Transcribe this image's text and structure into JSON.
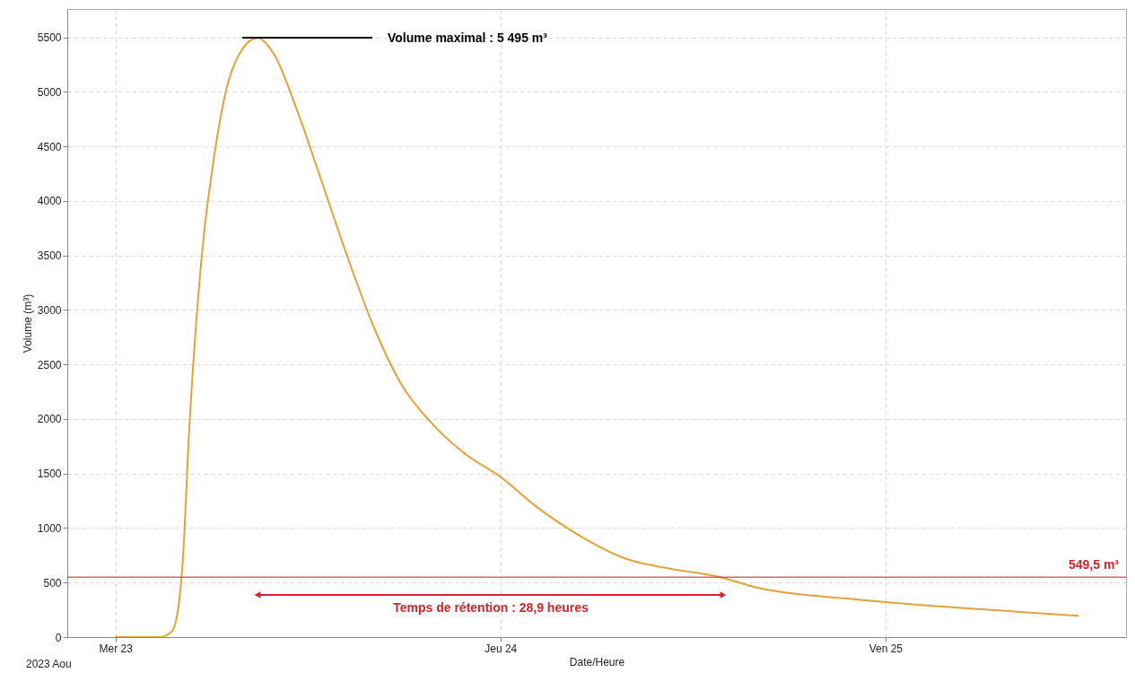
{
  "chart_data": {
    "type": "line",
    "xlabel": "Date/Heure",
    "ylabel": "Volume (m³)",
    "x": [
      "2023-08-23T00:00",
      "2023-08-23T02:00",
      "2023-08-23T02:45",
      "2023-08-23T03:30",
      "2023-08-23T03:54",
      "2023-08-23T04:12",
      "2023-08-23T04:36",
      "2023-08-23T05:09",
      "2023-08-23T05:36",
      "2023-08-23T06:00",
      "2023-08-23T06:48",
      "2023-08-23T07:54",
      "2023-08-23T08:52",
      "2023-08-23T09:52",
      "2023-08-23T11:15",
      "2023-08-23T12:54",
      "2023-08-23T14:36",
      "2023-08-23T16:12",
      "2023-08-23T17:54",
      "2023-08-23T19:36",
      "2023-08-23T21:48",
      "2023-08-24T00:00",
      "2023-08-24T02:12",
      "2023-08-24T05:00",
      "2023-08-24T07:48",
      "2023-08-24T10:30",
      "2023-08-24T13:42",
      "2023-08-24T16:06",
      "2023-08-24T18:48",
      "2023-08-24T21:30",
      "2023-08-25T00:00",
      "2023-08-25T03:00",
      "2023-08-25T06:00",
      "2023-08-25T09:00",
      "2023-08-25T12:00"
    ],
    "series": [
      {
        "color": "#e3a23b",
        "values": [
          0,
          0,
          0,
          50,
          250,
          700,
          1900,
          3100,
          3800,
          4250,
          4950,
          5390,
          5495,
          5350,
          4860,
          4160,
          3430,
          2810,
          2300,
          1980,
          1680,
          1470,
          1200,
          925,
          720,
          630,
          550,
          450,
          390,
          355,
          320,
          285,
          255,
          225,
          195
        ]
      }
    ],
    "xlim": [
      "2023-08-22T21:00",
      "2023-08-25T15:00"
    ],
    "ylim": [
      0,
      5760
    ],
    "xticks": [
      {
        "value": "2023-08-23",
        "label": "Mer 23"
      },
      {
        "value": "2023-08-24",
        "label": "Jeu 24"
      },
      {
        "value": "2023-08-25",
        "label": "Ven 25"
      }
    ],
    "yticks": [
      0,
      500,
      1000,
      1500,
      2000,
      2500,
      3000,
      3500,
      4000,
      4500,
      5000,
      5500
    ],
    "grid": true,
    "marker": "none",
    "line_style": "solid",
    "ref_lines": [
      {
        "axis": "y",
        "value": 549.5,
        "label": "549,5 m³",
        "color": "#d0262e"
      }
    ],
    "annotations": [
      "Volume maximal : 5 495 m³",
      "Temps de rétention : 28,9 heures",
      "2023 Aou"
    ]
  }
}
